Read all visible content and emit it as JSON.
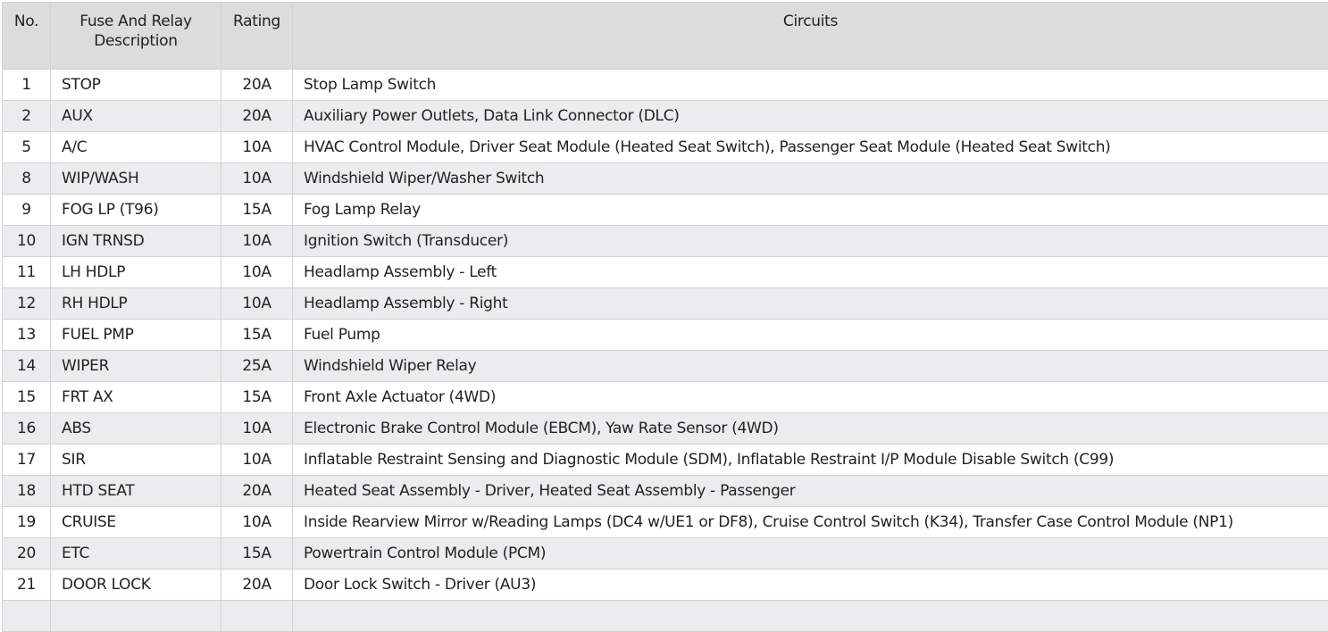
{
  "table": {
    "headers": {
      "no": "No.",
      "description": "Fuse And Relay Description",
      "rating": "Rating",
      "circuits": "Circuits"
    },
    "rows": [
      {
        "no": "1",
        "description": "STOP",
        "rating": "20A",
        "circuits": "Stop Lamp Switch"
      },
      {
        "no": "2",
        "description": "AUX",
        "rating": "20A",
        "circuits": "Auxiliary Power Outlets, Data Link Connector (DLC)"
      },
      {
        "no": "5",
        "description": "A/C",
        "rating": "10A",
        "circuits": "HVAC Control Module, Driver Seat Module (Heated Seat Switch), Passenger Seat Module (Heated Seat Switch)"
      },
      {
        "no": "8",
        "description": "WIP/WASH",
        "rating": "10A",
        "circuits": "Windshield Wiper/Washer Switch"
      },
      {
        "no": "9",
        "description": "FOG LP (T96)",
        "rating": "15A",
        "circuits": "Fog Lamp Relay"
      },
      {
        "no": "10",
        "description": "IGN TRNSD",
        "rating": "10A",
        "circuits": "Ignition Switch (Transducer)"
      },
      {
        "no": "11",
        "description": "LH HDLP",
        "rating": "10A",
        "circuits": "Headlamp Assembly - Left"
      },
      {
        "no": "12",
        "description": "RH HDLP",
        "rating": "10A",
        "circuits": "Headlamp Assembly - Right"
      },
      {
        "no": "13",
        "description": "FUEL PMP",
        "rating": "15A",
        "circuits": "Fuel Pump"
      },
      {
        "no": "14",
        "description": "WIPER",
        "rating": "25A",
        "circuits": "Windshield Wiper Relay"
      },
      {
        "no": "15",
        "description": "FRT AX",
        "rating": "15A",
        "circuits": "Front Axle Actuator (4WD)"
      },
      {
        "no": "16",
        "description": "ABS",
        "rating": "10A",
        "circuits": "Electronic Brake Control Module (EBCM), Yaw Rate Sensor (4WD)"
      },
      {
        "no": "17",
        "description": "SIR",
        "rating": "10A",
        "circuits": "Inflatable Restraint Sensing and Diagnostic Module (SDM), Inflatable Restraint I/P Module Disable Switch (C99)"
      },
      {
        "no": "18",
        "description": "HTD SEAT",
        "rating": "20A",
        "circuits": "Heated Seat Assembly - Driver, Heated Seat Assembly - Passenger"
      },
      {
        "no": "19",
        "description": "CRUISE",
        "rating": "10A",
        "circuits": "Inside Rearview Mirror w/Reading Lamps (DC4 w/UE1 or DF8), Cruise Control Switch (K34), Transfer Case Control Module (NP1)"
      },
      {
        "no": "20",
        "description": "ETC",
        "rating": "15A",
        "circuits": "Powertrain Control Module (PCM)"
      },
      {
        "no": "21",
        "description": "DOOR LOCK",
        "rating": "20A",
        "circuits": "Door Lock Switch - Driver (AU3)"
      },
      {
        "no": "",
        "description": "",
        "rating": "",
        "circuits": ""
      }
    ]
  }
}
